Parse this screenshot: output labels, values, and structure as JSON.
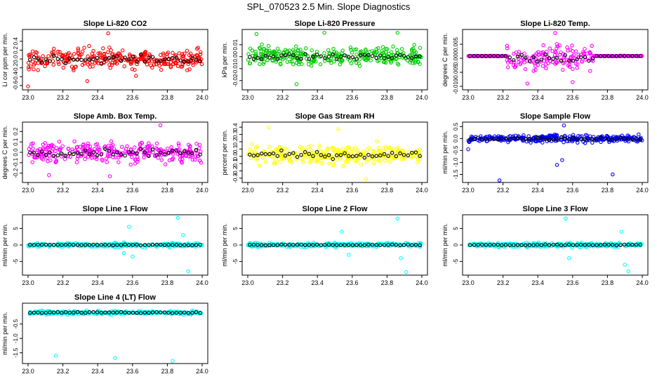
{
  "figure": {
    "title": "SPL_070523  2.5 Min. Slope Diagnostics"
  },
  "chart_data": [
    {
      "type": "scatter",
      "title": "Slope Li-820 CO2",
      "ylabel": "Li cor ppm per min.",
      "color": "#ff0000",
      "xlim": [
        23.0,
        24.0
      ],
      "ylim": [
        -0.65,
        0.62
      ],
      "yticks": [
        -0.6,
        -0.4,
        -0.2,
        0.0,
        0.2,
        0.4
      ],
      "ytick_labels": [
        "-0.6",
        "-0.4",
        "-0.2",
        "0.0",
        "0.2",
        "0.4"
      ],
      "noise": {
        "center": 0.0,
        "spread": 0.22,
        "clip": 0.6
      },
      "outliers": [
        [
          23.46,
          0.58
        ],
        [
          23.34,
          -0.5
        ],
        [
          23.0,
          -0.62
        ],
        [
          23.62,
          -0.38
        ]
      ]
    },
    {
      "type": "scatter",
      "title": "Slope Li-820 Pressure",
      "ylabel": "kPa per min.",
      "color": "#00cc00",
      "xlim": [
        23.0,
        24.0
      ],
      "ylim": [
        -0.026,
        0.021
      ],
      "yticks": [
        -0.02,
        -0.01,
        0.0,
        0.01
      ],
      "ytick_labels": [
        "-0.02",
        "-0.01",
        "0.00",
        "0.01"
      ],
      "noise": {
        "center": 0.0,
        "spread": 0.008,
        "clip": 0.02
      },
      "outliers": [
        [
          23.28,
          -0.023
        ],
        [
          23.44,
          0.02
        ],
        [
          23.86,
          0.02
        ],
        [
          23.05,
          0.019
        ]
      ]
    },
    {
      "type": "scatter",
      "title": "Slope Li-820 Temp.",
      "ylabel": "degrees C per min.",
      "color": "#ff00ff",
      "xlim": [
        23.0,
        24.0
      ],
      "ylim": [
        -0.0105,
        0.0095
      ],
      "yticks": [
        -0.01,
        -0.005,
        0.0,
        0.005
      ],
      "ytick_labels": [
        "-0.010",
        "-0.005",
        "0.000",
        "0.005"
      ],
      "noise": {
        "center": 0.0,
        "spread": 0.004,
        "clip": 0.009
      },
      "band": [
        23.22,
        23.72
      ],
      "flat_value": 0.0008,
      "outliers": [
        [
          23.34,
          -0.009
        ],
        [
          23.5,
          0.009
        ],
        [
          23.6,
          -0.0085
        ]
      ]
    },
    {
      "type": "scatter",
      "title": "Slope Amb. Box Temp.",
      "ylabel": "degrees C per min.",
      "color": "#ff00ff",
      "xlim": [
        23.0,
        24.0
      ],
      "ylim": [
        -0.27,
        0.27
      ],
      "yticks": [
        -0.2,
        -0.1,
        0.0,
        0.1,
        0.2
      ],
      "ytick_labels": [
        "-0.2",
        "-0.1",
        "0.0",
        "0.1",
        "0.2"
      ],
      "noise": {
        "center": 0.0,
        "spread": 0.09,
        "clip": 0.22
      },
      "outliers": [
        [
          23.76,
          0.26
        ],
        [
          23.47,
          -0.23
        ],
        [
          23.12,
          -0.22
        ]
      ]
    },
    {
      "type": "scatter",
      "title": "Slope Gas Stream RH",
      "ylabel": "percent per min.",
      "color": "#ffff00",
      "xlim": [
        23.0,
        24.0
      ],
      "ylim": [
        -0.33,
        0.44
      ],
      "yticks": [
        -0.3,
        -0.2,
        -0.1,
        0.0,
        0.1,
        0.2,
        0.3,
        0.4
      ],
      "ytick_labels": [
        "-0.3",
        "-0.2",
        "-0.1",
        "0.0",
        "0.1",
        "0.2",
        "0.3",
        "0.4"
      ],
      "noise": {
        "center": 0.02,
        "spread": 0.12,
        "clip": 0.3
      },
      "outliers": [
        [
          23.12,
          0.4
        ],
        [
          23.68,
          -0.31
        ],
        [
          23.52,
          0.37
        ]
      ]
    },
    {
      "type": "scatter",
      "title": "Slope Sample Flow",
      "ylabel": "ml/min per min.",
      "color": "#0000ff",
      "xlim": [
        23.0,
        24.0
      ],
      "ylim": [
        -1.75,
        0.6
      ],
      "yticks": [
        -1.5,
        -1.0,
        -0.5,
        0.0,
        0.5
      ],
      "ytick_labels": [
        "-1.5",
        "-1.0",
        "-0.5",
        "0.0",
        "0.5"
      ],
      "noise": {
        "center": 0.0,
        "spread": 0.15,
        "clip": 0.45
      },
      "outliers": [
        [
          23.55,
          0.55
        ],
        [
          23.54,
          -0.9
        ],
        [
          23.51,
          -1.1
        ],
        [
          23.83,
          -1.5
        ],
        [
          23.18,
          -1.75
        ],
        [
          23.0,
          -0.45
        ]
      ]
    },
    {
      "type": "scatter",
      "title": "Slope Line 1 Flow",
      "ylabel": "ml/min per min.",
      "color": "#00ffff",
      "xlim": [
        23.0,
        24.0
      ],
      "ylim": [
        -8.5,
        8.5
      ],
      "yticks": [
        -5,
        0,
        5
      ],
      "ytick_labels": [
        "-5",
        "0",
        "5"
      ],
      "noise": {
        "center": 0.0,
        "spread": 0.6,
        "clip": 1.8
      },
      "spikes": [
        [
          23.58,
          5.5
        ],
        [
          23.6,
          -3.5
        ],
        [
          23.86,
          8.2
        ],
        [
          23.89,
          3.0
        ],
        [
          23.92,
          -8.0
        ],
        [
          23.55,
          -2.5
        ]
      ]
    },
    {
      "type": "scatter",
      "title": "Slope Line 2 Flow",
      "ylabel": "ml/min per min.",
      "color": "#00ffff",
      "xlim": [
        23.0,
        24.0
      ],
      "ylim": [
        -8.5,
        8.5
      ],
      "yticks": [
        -5,
        0,
        5
      ],
      "ytick_labels": [
        "-5",
        "0",
        "5"
      ],
      "noise": {
        "center": 0.0,
        "spread": 0.6,
        "clip": 1.8
      },
      "spikes": [
        [
          23.54,
          4.0
        ],
        [
          23.58,
          -3.0
        ],
        [
          23.86,
          8.0
        ],
        [
          23.88,
          -4.0
        ],
        [
          23.91,
          -8.2
        ]
      ]
    },
    {
      "type": "scatter",
      "title": "Slope Line 3 Flow",
      "ylabel": "ml/min per min.",
      "color": "#00ffff",
      "xlim": [
        23.0,
        24.0
      ],
      "ylim": [
        -8.5,
        8.5
      ],
      "yticks": [
        -5,
        0,
        5
      ],
      "ytick_labels": [
        "-5",
        "0",
        "5"
      ],
      "noise": {
        "center": 0.0,
        "spread": 0.6,
        "clip": 1.8
      },
      "spikes": [
        [
          23.56,
          8.0
        ],
        [
          23.58,
          -4.0
        ],
        [
          23.88,
          4.0
        ],
        [
          23.9,
          -6.0
        ],
        [
          23.92,
          -8.0
        ]
      ]
    },
    {
      "type": "scatter",
      "title": "Slope Line 4 (LT) Flow",
      "ylabel": "ml/min per min.",
      "color": "#00ffff",
      "xlim": [
        23.0,
        24.0
      ],
      "ylim": [
        -1.8,
        0.15
      ],
      "yticks": [
        -1.5,
        -1.0,
        -0.5
      ],
      "ytick_labels": [
        "-1.5",
        "-1.0",
        "-0.5"
      ],
      "noise": {
        "center": -0.1,
        "spread": 0.06,
        "clip": 0.15
      },
      "outliers": [
        [
          23.16,
          -1.6
        ],
        [
          23.5,
          -1.68
        ],
        [
          23.83,
          -1.78
        ]
      ]
    }
  ],
  "x_axis": {
    "ticks": [
      23.0,
      23.2,
      23.4,
      23.6,
      23.8,
      24.0
    ],
    "tick_labels": [
      "23.0",
      "23.2",
      "23.4",
      "23.6",
      "23.8",
      "24.0"
    ]
  },
  "marker_colors": {
    "highlight": "#000000"
  }
}
